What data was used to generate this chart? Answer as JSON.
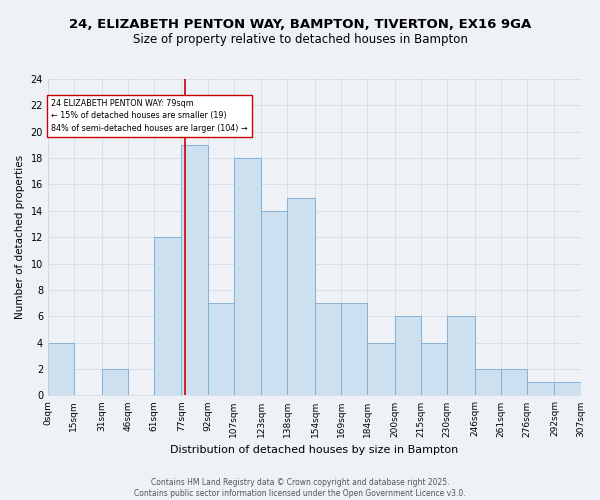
{
  "title_line1": "24, ELIZABETH PENTON WAY, BAMPTON, TIVERTON, EX16 9GA",
  "title_line2": "Size of property relative to detached houses in Bampton",
  "xlabel": "Distribution of detached houses by size in Bampton",
  "ylabel": "Number of detached properties",
  "bin_edges": [
    0,
    15,
    31,
    46,
    61,
    77,
    92,
    107,
    123,
    138,
    154,
    169,
    184,
    200,
    215,
    230,
    246,
    261,
    276,
    292,
    307
  ],
  "bin_labels": [
    "0sqm",
    "15sqm",
    "31sqm",
    "46sqm",
    "61sqm",
    "77sqm",
    "92sqm",
    "107sqm",
    "123sqm",
    "138sqm",
    "154sqm",
    "169sqm",
    "184sqm",
    "200sqm",
    "215sqm",
    "230sqm",
    "246sqm",
    "261sqm",
    "276sqm",
    "292sqm",
    "307sqm"
  ],
  "bar_heights": [
    4,
    0,
    2,
    0,
    12,
    19,
    7,
    18,
    14,
    15,
    7,
    7,
    4,
    6,
    4,
    6,
    2,
    2,
    1,
    1
  ],
  "bar_color": "#cce0f0",
  "bar_edge_color": "#7aaacf",
  "grid_color": "#d0d8e0",
  "background_color": "#eef2f7",
  "vline_x": 79,
  "vline_color": "#cc0000",
  "annotation_text": "24 ELIZABETH PENTON WAY: 79sqm\n← 15% of detached houses are smaller (19)\n84% of semi-detached houses are larger (104) →",
  "annotation_box_color": "#ffffff",
  "annotation_box_edge": "#cc0000",
  "ylim": [
    0,
    24
  ],
  "yticks": [
    0,
    2,
    4,
    6,
    8,
    10,
    12,
    14,
    16,
    18,
    20,
    22,
    24
  ],
  "footnote": "Contains HM Land Registry data © Crown copyright and database right 2025.\nContains public sector information licensed under the Open Government Licence v3.0.",
  "title_fontsize": 9.5,
  "subtitle_fontsize": 8.5,
  "footnote_fontsize": 5.5
}
